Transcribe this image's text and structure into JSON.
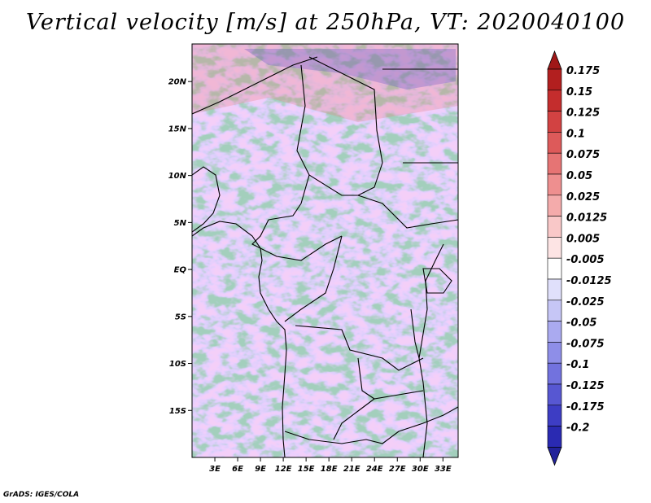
{
  "title": "Vertical velocity [m/s] at 250hPa, VT: 2020040100",
  "credit": "GrADS: IGES/COLA",
  "map": {
    "lon_range": [
      0,
      35
    ],
    "lat_range": [
      -20,
      24
    ],
    "lat_ticks": [
      {
        "value": 20,
        "label": "20N"
      },
      {
        "value": 15,
        "label": "15N"
      },
      {
        "value": 10,
        "label": "10N"
      },
      {
        "value": 5,
        "label": "5N"
      },
      {
        "value": 0,
        "label": "EQ"
      },
      {
        "value": -5,
        "label": "5S"
      },
      {
        "value": -10,
        "label": "10S"
      },
      {
        "value": -15,
        "label": "15S"
      }
    ],
    "lon_ticks": [
      {
        "value": 3,
        "label": "3E"
      },
      {
        "value": 6,
        "label": "6E"
      },
      {
        "value": 9,
        "label": "9E"
      },
      {
        "value": 12,
        "label": "12E"
      },
      {
        "value": 15,
        "label": "15E"
      },
      {
        "value": 18,
        "label": "18E"
      },
      {
        "value": 21,
        "label": "21E"
      },
      {
        "value": 24,
        "label": "24E"
      },
      {
        "value": 27,
        "label": "27E"
      },
      {
        "value": 30,
        "label": "30E"
      },
      {
        "value": 33,
        "label": "33E"
      }
    ]
  },
  "colorbar": {
    "levels": [
      {
        "label": "0.175",
        "color": "#b21f1f"
      },
      {
        "label": "0.15",
        "color": "#c42d2d"
      },
      {
        "label": "0.125",
        "color": "#d24242"
      },
      {
        "label": "0.1",
        "color": "#dd5a5a"
      },
      {
        "label": "0.075",
        "color": "#e67474"
      },
      {
        "label": "0.05",
        "color": "#ee8f8f"
      },
      {
        "label": "0.025",
        "color": "#f4abab"
      },
      {
        "label": "0.0125",
        "color": "#f9c8c8"
      },
      {
        "label": "0.005",
        "color": "#fde4e4"
      },
      {
        "label": "-0.005",
        "color": "#ffffff"
      },
      {
        "label": "-0.0125",
        "color": "#e0e0fb"
      },
      {
        "label": "-0.025",
        "color": "#c6c6f6"
      },
      {
        "label": "-0.05",
        "color": "#aaaaf0"
      },
      {
        "label": "-0.075",
        "color": "#8e8ee8"
      },
      {
        "label": "-0.1",
        "color": "#7272de"
      },
      {
        "label": "-0.125",
        "color": "#5757d2"
      },
      {
        "label": "-0.175",
        "color": "#3d3dc4"
      },
      {
        "label": "-0.2",
        "color": "#2a2ab2"
      }
    ],
    "top_arrow_color": "#a01818",
    "bottom_arrow_color": "#22229a"
  }
}
